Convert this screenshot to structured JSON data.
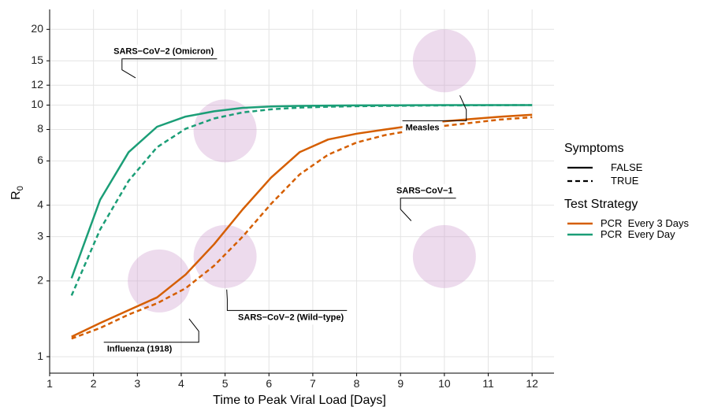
{
  "chart_data": {
    "type": "line",
    "xlabel": "Time to Peak Viral Load [Days]",
    "ylabel_main": "R",
    "ylabel_sub": "0",
    "x_scale": "linear",
    "y_scale": "log",
    "xlim": [
      1,
      12.5
    ],
    "ylim": [
      0.86,
      24
    ],
    "x_ticks": [
      1,
      2,
      3,
      4,
      5,
      6,
      7,
      8,
      9,
      10,
      11,
      12
    ],
    "y_ticks": [
      1,
      2,
      3,
      4,
      6,
      8,
      10,
      12,
      15,
      20
    ],
    "grid": true,
    "legend_placement": "right",
    "legend": {
      "linetype_title": "Symptoms",
      "linetype_entries": [
        {
          "label": "FALSE",
          "dash": "solid"
        },
        {
          "label": "TRUE",
          "dash": "dashed"
        }
      ],
      "color_title": "Test Strategy",
      "color_entries": [
        {
          "label": "PCR  Every 3 Days",
          "color": "#d55e00"
        },
        {
          "label": "PCR  Every Day",
          "color": "#1b9e77"
        }
      ]
    },
    "series": [
      {
        "strategy": "PCR  Every Day",
        "symptoms": "FALSE",
        "color": "#1b9e77",
        "dash": "solid",
        "points": [
          [
            1.5,
            2.05
          ],
          [
            2.15,
            4.2
          ],
          [
            2.8,
            6.5
          ],
          [
            3.45,
            8.2
          ],
          [
            4.1,
            9.0
          ],
          [
            4.75,
            9.45
          ],
          [
            5.4,
            9.75
          ],
          [
            6.05,
            9.88
          ],
          [
            6.7,
            9.93
          ],
          [
            7.35,
            9.96
          ],
          [
            8.0,
            9.97
          ],
          [
            8.65,
            9.98
          ],
          [
            9.3,
            9.99
          ],
          [
            9.95,
            10.0
          ],
          [
            10.6,
            10.0
          ],
          [
            11.25,
            10.0
          ],
          [
            12.0,
            10.0
          ]
        ]
      },
      {
        "strategy": "PCR  Every Day",
        "symptoms": "TRUE",
        "color": "#1b9e77",
        "dash": "dashed",
        "points": [
          [
            1.5,
            1.75
          ],
          [
            2.15,
            3.2
          ],
          [
            2.8,
            5.0
          ],
          [
            3.45,
            6.8
          ],
          [
            4.1,
            8.05
          ],
          [
            4.75,
            8.85
          ],
          [
            5.4,
            9.35
          ],
          [
            6.05,
            9.62
          ],
          [
            6.7,
            9.77
          ],
          [
            7.35,
            9.85
          ],
          [
            8.0,
            9.9
          ],
          [
            8.65,
            9.93
          ],
          [
            9.3,
            9.95
          ],
          [
            9.95,
            9.97
          ],
          [
            10.6,
            9.98
          ],
          [
            11.25,
            9.99
          ],
          [
            12.0,
            10.0
          ]
        ]
      },
      {
        "strategy": "PCR  Every 3 Days",
        "symptoms": "FALSE",
        "color": "#d55e00",
        "dash": "solid",
        "points": [
          [
            1.5,
            1.2
          ],
          [
            2.15,
            1.36
          ],
          [
            2.8,
            1.53
          ],
          [
            3.45,
            1.72
          ],
          [
            4.1,
            2.12
          ],
          [
            4.75,
            2.8
          ],
          [
            5.4,
            3.85
          ],
          [
            6.05,
            5.15
          ],
          [
            6.7,
            6.5
          ],
          [
            7.35,
            7.3
          ],
          [
            8.0,
            7.7
          ],
          [
            8.65,
            8.0
          ],
          [
            9.3,
            8.3
          ],
          [
            9.95,
            8.6
          ],
          [
            10.6,
            8.8
          ],
          [
            11.25,
            8.98
          ],
          [
            12.0,
            9.15
          ]
        ]
      },
      {
        "strategy": "PCR  Every 3 Days",
        "symptoms": "TRUE",
        "color": "#d55e00",
        "dash": "dashed",
        "points": [
          [
            1.5,
            1.18
          ],
          [
            2.15,
            1.3
          ],
          [
            2.8,
            1.47
          ],
          [
            3.45,
            1.63
          ],
          [
            4.1,
            1.87
          ],
          [
            4.75,
            2.3
          ],
          [
            5.4,
            3.0
          ],
          [
            6.05,
            4.05
          ],
          [
            6.7,
            5.3
          ],
          [
            7.35,
            6.35
          ],
          [
            8.0,
            7.1
          ],
          [
            8.65,
            7.6
          ],
          [
            9.3,
            7.95
          ],
          [
            9.95,
            8.25
          ],
          [
            10.6,
            8.5
          ],
          [
            11.25,
            8.75
          ],
          [
            12.0,
            8.95
          ]
        ]
      }
    ],
    "pathogens": [
      {
        "label": "Influenza (1918)",
        "x": 3.5,
        "y": 2.0,
        "label_anchor": [
          3.05,
          1.07
        ],
        "elbow": [
          4.4,
          1.2
        ]
      },
      {
        "label": "SARS−CoV−2 (Wild−type)",
        "x": 5.0,
        "y": 2.5,
        "label_anchor": [
          6.5,
          1.43
        ],
        "elbow": [
          5.05,
          1.55
        ]
      },
      {
        "label": "SARS−CoV−2 (Omicron)",
        "x": 5.0,
        "y": 7.9,
        "label_anchor": [
          3.6,
          16.3
        ],
        "elbow": [
          2.65,
          14.4
        ]
      },
      {
        "label": "SARS−CoV−1",
        "x": 10.0,
        "y": 2.5,
        "label_anchor": [
          9.55,
          4.55
        ],
        "elbow": [
          9.0,
          4.0
        ]
      },
      {
        "label": "Measles",
        "x": 10.0,
        "y": 15.0,
        "label_anchor": [
          9.5,
          8.12
        ],
        "elbow": [
          10.5,
          9.2
        ]
      }
    ],
    "pathogen_color": "#cc99cc"
  }
}
